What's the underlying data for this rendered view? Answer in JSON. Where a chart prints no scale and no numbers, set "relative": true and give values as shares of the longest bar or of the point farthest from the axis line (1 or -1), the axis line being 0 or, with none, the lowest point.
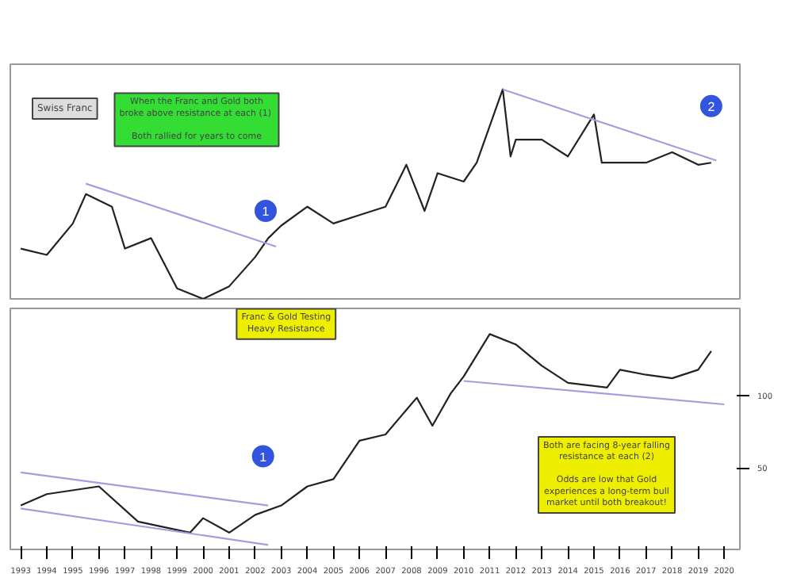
{
  "chart_data": [
    {
      "type": "line",
      "relative": true,
      "tick_labels": false,
      "xlim": [
        1992.6,
        2020.6
      ],
      "grid": false,
      "series": [
        {
          "name": "Swiss Franc",
          "color": "#222222",
          "x": [
            1993,
            1994,
            1995,
            1995.5,
            1996.5,
            1997,
            1998,
            1999,
            2000,
            2001,
            2002,
            2002.5,
            2003,
            2004,
            2005,
            2006,
            2007,
            2007.8,
            2008.5,
            2009,
            2010,
            2010.5,
            2011.5,
            2011.8,
            2012,
            2013,
            2014,
            2015,
            2015.3,
            2016,
            2017,
            2018,
            2019,
            2019.5
          ],
          "values": [
            0.24,
            0.21,
            0.36,
            0.5,
            0.44,
            0.24,
            0.29,
            0.05,
            0,
            0.06,
            0.2,
            0.29,
            0.35,
            0.44,
            0.36,
            0.4,
            0.44,
            0.64,
            0.42,
            0.6,
            0.56,
            0.65,
            1,
            0.68,
            0.76,
            0.76,
            0.68,
            0.88,
            0.65,
            0.65,
            0.65,
            0.7,
            0.64,
            0.65
          ]
        },
        {
          "type": "line",
          "color": "#a0a0dd",
          "x": [
            1995.5,
            2002.8
          ],
          "values": [
            0.55,
            0.25
          ]
        },
        {
          "type": "line",
          "color": "#a0a0dd",
          "x": [
            2011.5,
            2019.7
          ],
          "values": [
            1,
            0.66
          ]
        }
      ],
      "annotations": [
        "When the Franc and Gold both\nbroke above  resistance at each (1)\n\nBoth rallied for years to come",
        {
          "text": "1",
          "x": 2002.4,
          "y": 0.42
        },
        {
          "text": "2",
          "x": 2019.5,
          "y": 0.92
        }
      ]
    },
    {
      "type": "line",
      "log": true,
      "xlim": [
        1992.6,
        2020.6
      ],
      "ylim": [
        23,
        230
      ],
      "yticks": [
        50,
        100
      ],
      "xticks": [
        1993,
        1994,
        1995,
        1996,
        1997,
        1998,
        1999,
        2000,
        2001,
        2002,
        2003,
        2004,
        2005,
        2006,
        2007,
        2008,
        2009,
        2010,
        2011,
        2012,
        2013,
        2014,
        2015,
        2016,
        2017,
        2018,
        2019,
        2020
      ],
      "grid": false,
      "series": [
        {
          "color": "#222222",
          "x": [
            1993,
            1994,
            1996,
            1997.5,
            1999.5,
            2000,
            2001,
            2002,
            2003,
            2004,
            2005,
            2006,
            2007,
            2008.2,
            2008.8,
            2009.5,
            2010,
            2011,
            2012,
            2013,
            2014,
            2015.5,
            2016,
            2017,
            2018,
            2019,
            2019.5
          ],
          "values": [
            35,
            39,
            42,
            30,
            27,
            31,
            27,
            32,
            35,
            42,
            45,
            65,
            69,
            98,
            75,
            102,
            120,
            180,
            163,
            133,
            113,
            108,
            128,
            122,
            118,
            128,
            153
          ]
        },
        {
          "type": "line",
          "color": "#a0a0dd",
          "x": [
            1993,
            2002.5
          ],
          "values": [
            48,
            35
          ]
        },
        {
          "type": "line",
          "color": "#a0a0dd",
          "x": [
            1993,
            2002.5
          ],
          "values": [
            34,
            24
          ]
        },
        {
          "type": "line",
          "color": "#a0a0dd",
          "x": [
            2010,
            2020
          ],
          "values": [
            115,
            92
          ]
        }
      ],
      "annotations": [
        "Franc & Gold Testing\nHeavy Resistance",
        "Both are facing 8-year falling\nresistance at each (2)\n\nOdds are low that Gold\nexperiences a long-term bull\nmarket until both breakout!",
        {
          "text": "1",
          "x": 2002.3,
          "y": 56
        }
      ]
    }
  ]
}
